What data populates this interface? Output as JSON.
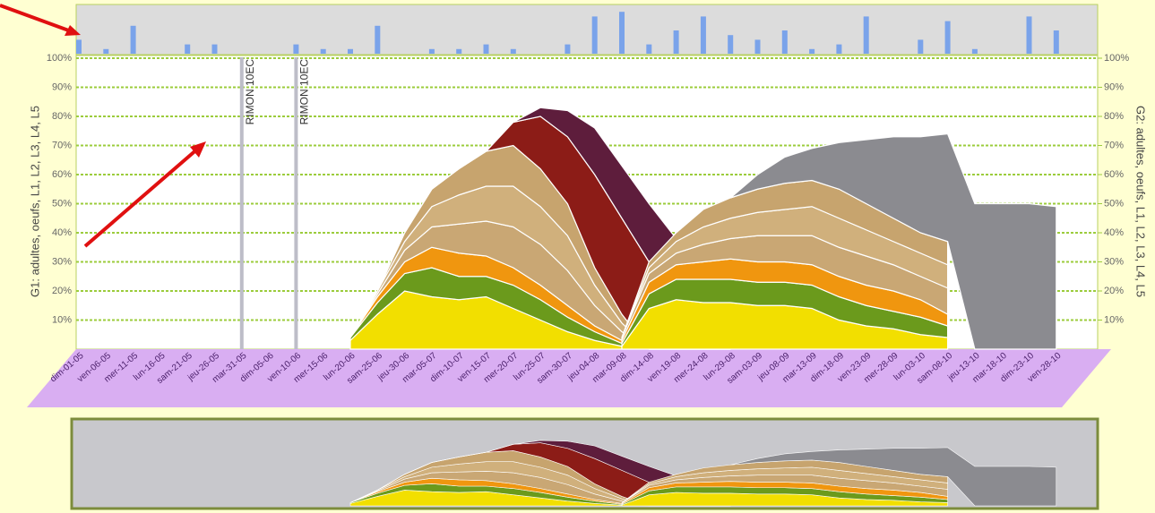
{
  "chart_data": [
    {
      "type": "area",
      "stacked": true,
      "y_label": "G1: adultes, oeufs, L1, L2, L3, L4, L5",
      "y2_label": "G2: adultes, oeufs, L1, L2, L3, L4, L5",
      "categories": [
        "dim-01-05",
        "ven-06-05",
        "mer-11-05",
        "lun-16-05",
        "sam-21-05",
        "jeu-26-05",
        "mar-31-05",
        "dim-05-06",
        "ven-10-06",
        "mer-15-06",
        "lun-20-06",
        "sam-25-06",
        "jeu-30-06",
        "mar-05-07",
        "dim-10-07",
        "ven-15-07",
        "mer-20-07",
        "lun-25-07",
        "sam-30-07",
        "jeu-04-08",
        "mar-09-08",
        "dim-14-08",
        "ven-19-08",
        "mer-24-08",
        "lun-29-08",
        "sam-03-09",
        "jeu-08-09",
        "mar-13-09",
        "dim-18-09",
        "ven-23-09",
        "mer-28-09",
        "lun-03-10",
        "sam-08-10",
        "jeu-13-10",
        "mar-18-10",
        "dim-23-10",
        "ven-28-10"
      ],
      "ylim": [
        0,
        100
      ],
      "yticks": [
        {
          "value": 10,
          "label": "10%"
        },
        {
          "value": 20,
          "label": "20%"
        },
        {
          "value": 30,
          "label": "30%"
        },
        {
          "value": 40,
          "label": "40%"
        },
        {
          "value": 50,
          "label": "50%"
        },
        {
          "value": 60,
          "label": "60%"
        },
        {
          "value": 70,
          "label": "70%"
        },
        {
          "value": 80,
          "label": "80%"
        },
        {
          "value": 90,
          "label": "90%"
        },
        {
          "value": 100,
          "label": "100%"
        }
      ],
      "y2lim": [
        0,
        100
      ],
      "y2ticks": [
        {
          "value": 10,
          "label": "10%"
        },
        {
          "value": 20,
          "label": "20%"
        },
        {
          "value": 30,
          "label": "30%"
        },
        {
          "value": 40,
          "label": "40%"
        },
        {
          "value": 50,
          "label": "50%"
        },
        {
          "value": 60,
          "label": "60%"
        },
        {
          "value": 70,
          "label": "70%"
        },
        {
          "value": 80,
          "label": "80%"
        },
        {
          "value": 90,
          "label": "90%"
        },
        {
          "value": 100,
          "label": "100%"
        }
      ],
      "grid": true,
      "annotations": [
        {
          "text": "RIMON 10EC",
          "category": "mar-31-05"
        },
        {
          "text": "RIMON 10EC",
          "category": "ven-10-06"
        }
      ],
      "series": [
        {
          "color": "#f2df00",
          "values": [
            null,
            null,
            null,
            null,
            null,
            null,
            null,
            null,
            null,
            null,
            3,
            12,
            20,
            18,
            17,
            18,
            14,
            10,
            6,
            3,
            1,
            0,
            0,
            0,
            0,
            null,
            null,
            null,
            null,
            null,
            null,
            null,
            null,
            null,
            null,
            null,
            null
          ]
        },
        {
          "color": "#6b9a1c",
          "values": [
            null,
            null,
            null,
            null,
            null,
            null,
            null,
            null,
            null,
            null,
            1,
            4,
            6,
            10,
            8,
            7,
            8,
            7,
            5,
            3,
            1,
            0,
            0,
            0,
            0,
            null,
            null,
            null,
            null,
            null,
            null,
            null,
            null,
            null,
            null,
            null,
            null
          ]
        },
        {
          "color": "#f0960f",
          "values": [
            null,
            null,
            null,
            null,
            null,
            null,
            null,
            null,
            null,
            null,
            0,
            2,
            4,
            7,
            8,
            7,
            6,
            5,
            4,
            2,
            1,
            0,
            0,
            0,
            0,
            null,
            null,
            null,
            null,
            null,
            null,
            null,
            null,
            null,
            null,
            null,
            null
          ]
        },
        {
          "color": "#c9a774",
          "values": [
            null,
            null,
            null,
            null,
            null,
            null,
            null,
            null,
            null,
            null,
            0,
            1,
            4,
            7,
            10,
            12,
            14,
            14,
            12,
            7,
            3,
            0,
            0,
            0,
            0,
            null,
            null,
            null,
            null,
            null,
            null,
            null,
            null,
            null,
            null,
            null,
            null
          ]
        },
        {
          "color": "#d0b07c",
          "values": [
            null,
            null,
            null,
            null,
            null,
            null,
            null,
            null,
            null,
            null,
            0,
            1,
            3,
            7,
            10,
            12,
            14,
            13,
            12,
            7,
            3,
            0,
            0,
            0,
            0,
            null,
            null,
            null,
            null,
            null,
            null,
            null,
            null,
            null,
            null,
            null,
            null
          ]
        },
        {
          "color": "#c7a46e",
          "values": [
            null,
            null,
            null,
            null,
            null,
            null,
            null,
            null,
            null,
            null,
            0,
            0,
            3,
            6,
            9,
            12,
            14,
            13,
            11,
            6,
            3,
            0,
            0,
            0,
            0,
            null,
            null,
            null,
            null,
            null,
            null,
            null,
            null,
            null,
            null,
            null,
            null
          ]
        },
        {
          "color": "#8c1c17",
          "values": [
            null,
            null,
            null,
            null,
            null,
            null,
            null,
            null,
            null,
            null,
            0,
            0,
            0,
            0,
            0,
            0,
            8,
            18,
            23,
            32,
            33,
            30,
            15,
            2,
            0,
            null,
            null,
            null,
            null,
            null,
            null,
            null,
            null,
            null,
            null,
            null,
            null
          ]
        },
        {
          "color": "#5e1d3c",
          "values": [
            null,
            null,
            null,
            null,
            null,
            null,
            null,
            null,
            null,
            null,
            0,
            0,
            0,
            0,
            0,
            0,
            0,
            3,
            9,
            16,
            18,
            20,
            23,
            18,
            3,
            null,
            null,
            null,
            null,
            null,
            null,
            null,
            null,
            null,
            null,
            null,
            null
          ]
        },
        {
          "color": "#f2df00",
          "axis": "y2",
          "values": [
            null,
            null,
            null,
            null,
            null,
            null,
            null,
            null,
            null,
            null,
            null,
            null,
            null,
            null,
            null,
            null,
            null,
            null,
            null,
            null,
            1,
            14,
            17,
            16,
            16,
            15,
            15,
            14,
            10,
            8,
            7,
            5,
            4,
            null,
            null,
            null,
            null
          ]
        },
        {
          "color": "#6b9a1c",
          "axis": "y2",
          "values": [
            null,
            null,
            null,
            null,
            null,
            null,
            null,
            null,
            null,
            null,
            null,
            null,
            null,
            null,
            null,
            null,
            null,
            null,
            null,
            null,
            1,
            5,
            7,
            8,
            8,
            8,
            8,
            8,
            8,
            7,
            6,
            6,
            4,
            null,
            null,
            null,
            null
          ]
        },
        {
          "color": "#f0960f",
          "axis": "y2",
          "values": [
            null,
            null,
            null,
            null,
            null,
            null,
            null,
            null,
            null,
            null,
            null,
            null,
            null,
            null,
            null,
            null,
            null,
            null,
            null,
            null,
            1,
            4,
            5,
            6,
            7,
            7,
            7,
            7,
            7,
            7,
            7,
            6,
            4,
            null,
            null,
            null,
            null
          ]
        },
        {
          "color": "#c9a774",
          "axis": "y2",
          "values": [
            null,
            null,
            null,
            null,
            null,
            null,
            null,
            null,
            null,
            null,
            null,
            null,
            null,
            null,
            null,
            null,
            null,
            null,
            null,
            null,
            1,
            3,
            4,
            6,
            7,
            9,
            9,
            10,
            10,
            10,
            9,
            8,
            9,
            null,
            null,
            null,
            null
          ]
        },
        {
          "color": "#d0b07c",
          "axis": "y2",
          "values": [
            null,
            null,
            null,
            null,
            null,
            null,
            null,
            null,
            null,
            null,
            null,
            null,
            null,
            null,
            null,
            null,
            null,
            null,
            null,
            null,
            0,
            2,
            4,
            6,
            7,
            8,
            9,
            10,
            10,
            9,
            8,
            8,
            8,
            null,
            null,
            null,
            null
          ]
        },
        {
          "color": "#c7a46e",
          "axis": "y2",
          "values": [
            null,
            null,
            null,
            null,
            null,
            null,
            null,
            null,
            null,
            null,
            null,
            null,
            null,
            null,
            null,
            null,
            null,
            null,
            null,
            null,
            0,
            2,
            3,
            6,
            7,
            8,
            9,
            9,
            10,
            9,
            8,
            7,
            8,
            null,
            null,
            null,
            null
          ]
        },
        {
          "color": "#8b8b90",
          "axis": "y2",
          "values": [
            null,
            null,
            null,
            null,
            null,
            null,
            null,
            null,
            null,
            null,
            null,
            null,
            null,
            null,
            null,
            null,
            null,
            null,
            null,
            null,
            null,
            null,
            null,
            null,
            0,
            5,
            9,
            11,
            16,
            22,
            28,
            33,
            37,
            50,
            50,
            50,
            49
          ]
        }
      ]
    },
    {
      "type": "bar",
      "color": "#7aa3ea",
      "ylim": [
        0,
        10
      ],
      "categories": [
        null,
        null,
        null,
        null,
        null,
        null,
        null,
        null,
        null,
        null,
        null,
        null,
        null,
        null,
        null,
        null,
        null,
        null,
        null,
        null,
        null,
        null,
        null,
        null,
        null,
        null,
        null,
        null,
        null,
        null,
        null,
        null,
        null,
        null,
        null,
        null,
        null
      ],
      "values": [
        3,
        1,
        6,
        0,
        2,
        2,
        0,
        0,
        2,
        1,
        1,
        6,
        0,
        1,
        1,
        2,
        1,
        0,
        2,
        8,
        9,
        2,
        5,
        8,
        4,
        3,
        5,
        1,
        2,
        8,
        0,
        3,
        7,
        1,
        0,
        8,
        5
      ]
    }
  ]
}
